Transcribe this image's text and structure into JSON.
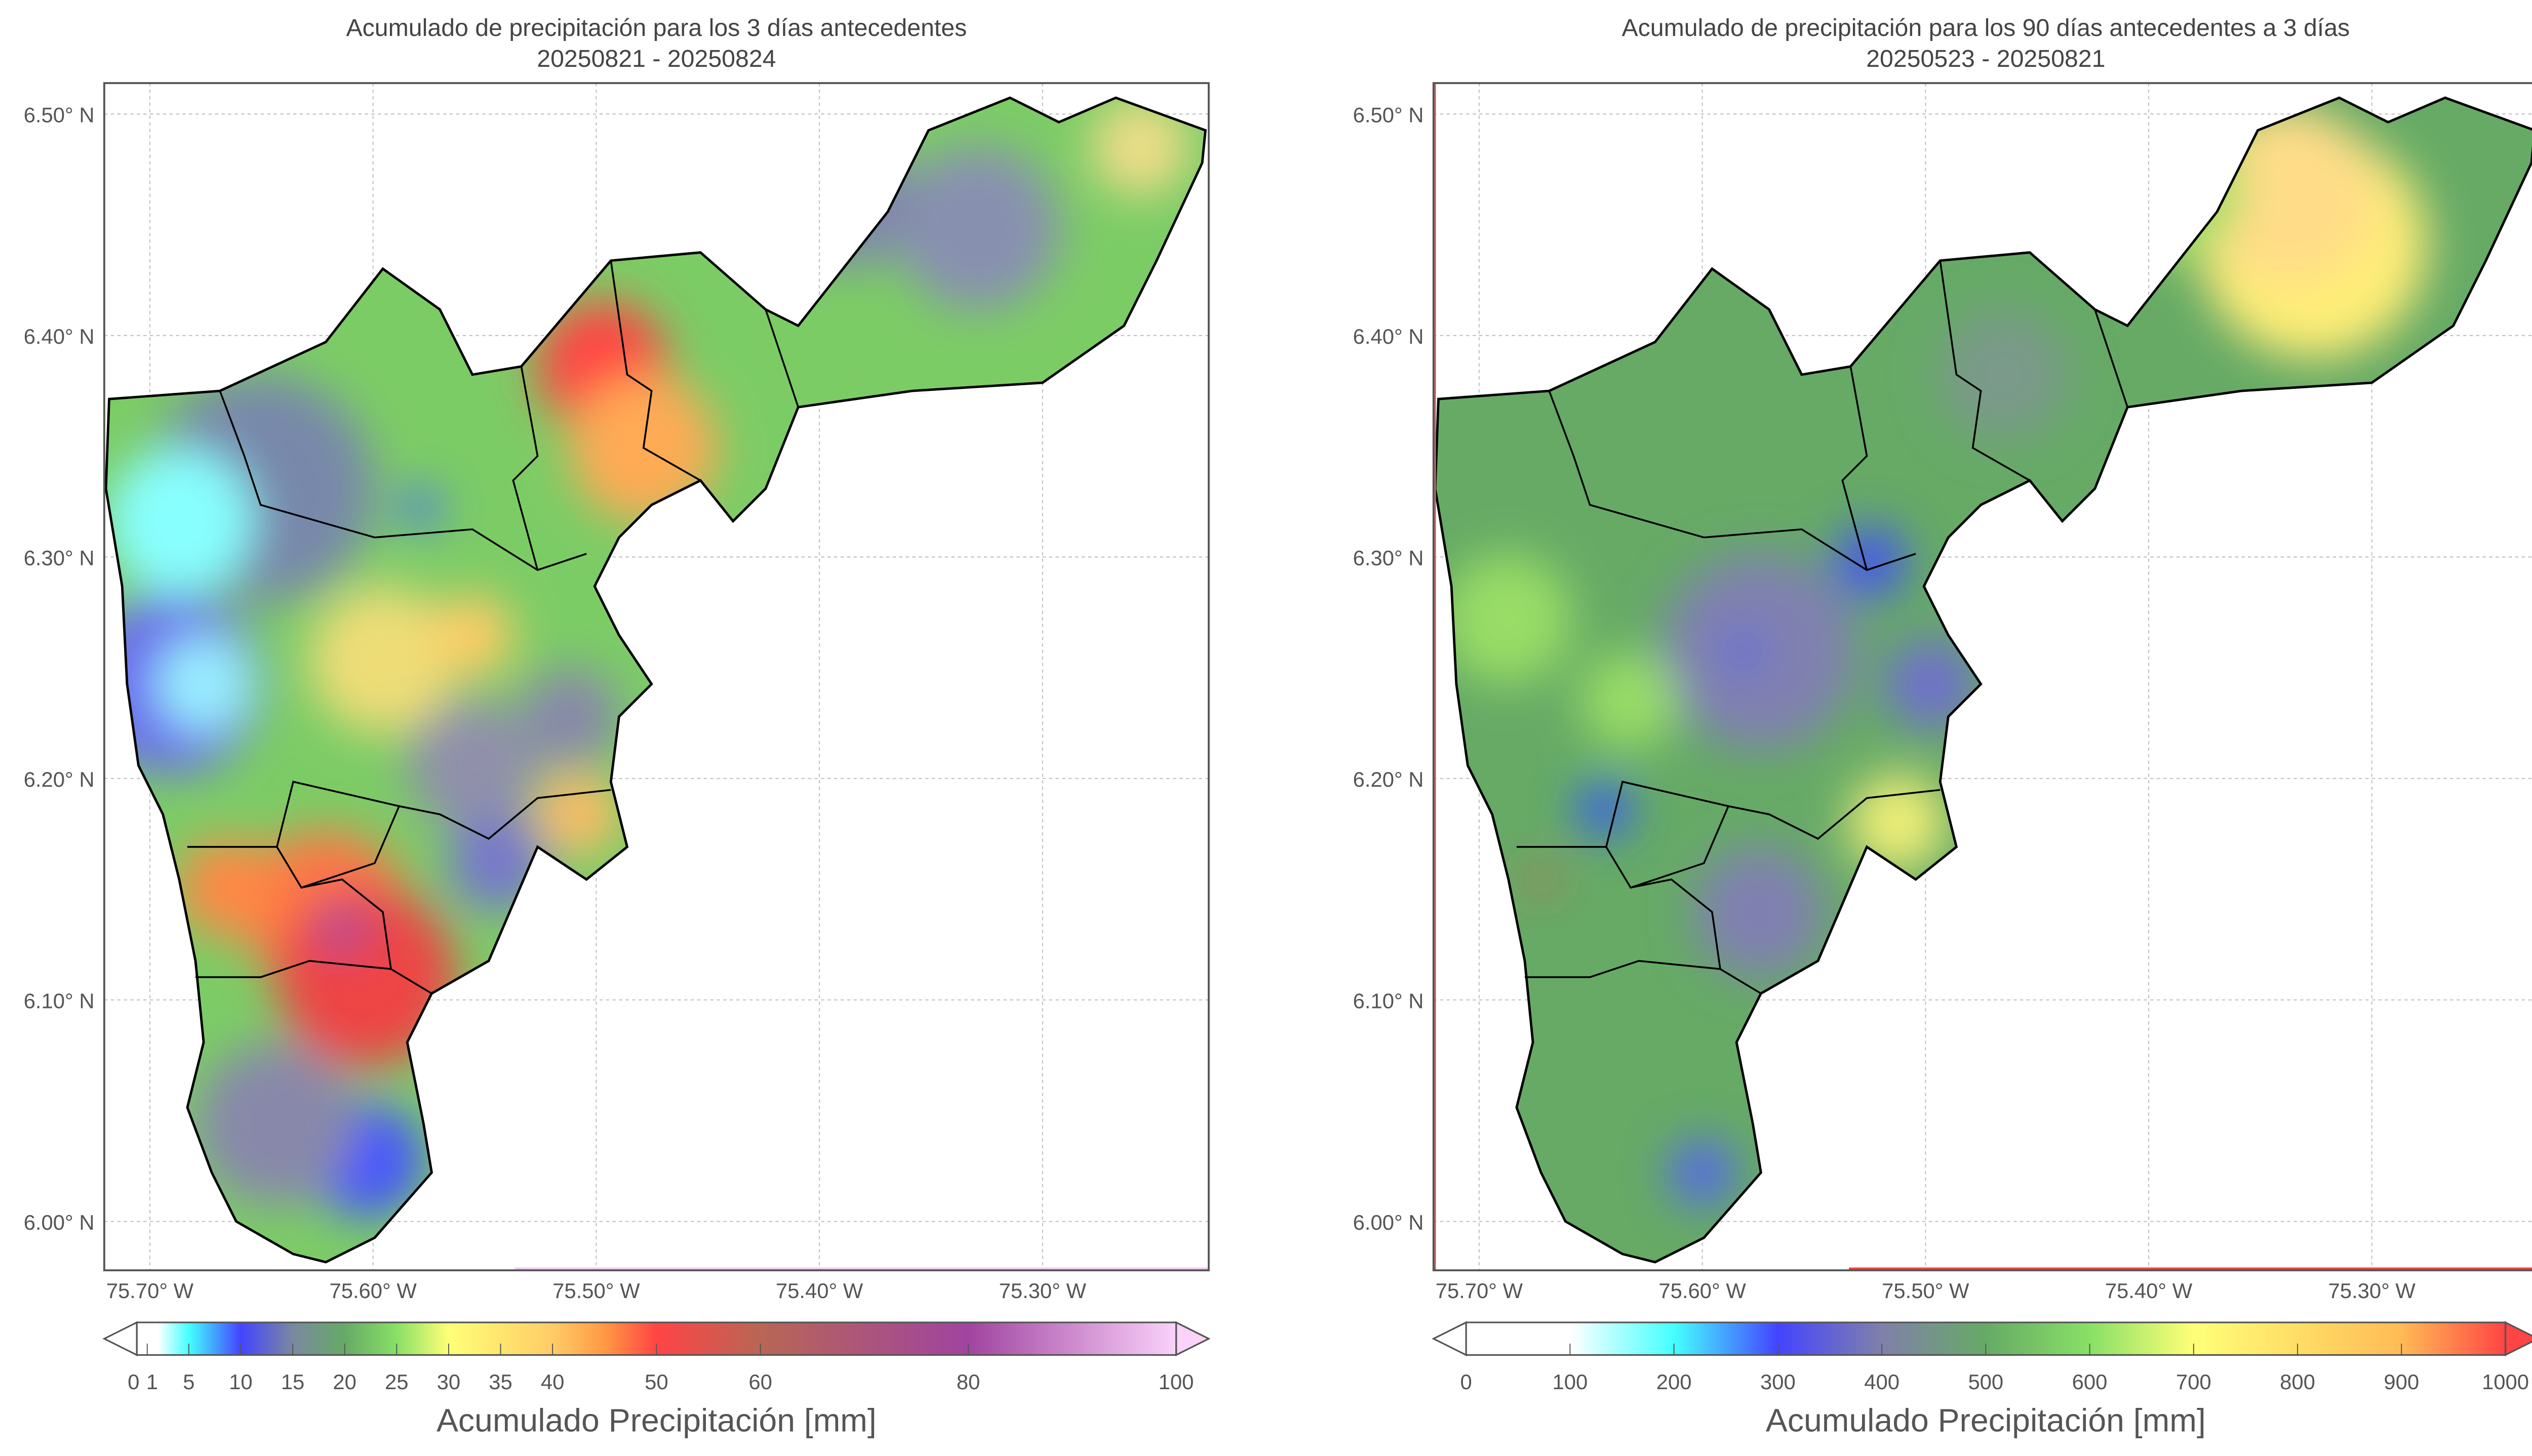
{
  "panels": [
    {
      "title": "Acumulado de precipitación para los 3 días antecedentes",
      "subtitle": "20250821 - 20250824",
      "lat_ticks": [
        "6.50° N",
        "6.40° N",
        "6.30° N",
        "6.20° N",
        "6.10° N",
        "6.00° N"
      ],
      "lon_ticks": [
        "75.70° W",
        "75.60° W",
        "75.50° W",
        "75.40° W",
        "75.30° W"
      ],
      "colorbar": {
        "label": "Acumulado Precipitación [mm]",
        "min": 0,
        "max": 100,
        "ticks": [
          0,
          1,
          5,
          10,
          15,
          20,
          25,
          30,
          35,
          40,
          50,
          60,
          80,
          100
        ],
        "tick_labels": [
          "0",
          "1",
          "5",
          "10",
          "15",
          "20",
          "25",
          "30",
          "35",
          "40",
          "50",
          "60",
          "80",
          "100"
        ],
        "stops": [
          [
            0,
            "#ffffff"
          ],
          [
            2,
            "#ffffff"
          ],
          [
            5,
            "#44ffff"
          ],
          [
            10,
            "#4444ff"
          ],
          [
            15,
            "#7a88a0"
          ],
          [
            20,
            "#66aa66"
          ],
          [
            25,
            "#88e066"
          ],
          [
            30,
            "#ffff77"
          ],
          [
            40,
            "#ffcc66"
          ],
          [
            45,
            "#ff9944"
          ],
          [
            50,
            "#ff4444"
          ],
          [
            60,
            "#b86655"
          ],
          [
            80,
            "#a044a0"
          ],
          [
            100,
            "#fad2fa"
          ]
        ],
        "extend_min_color": "#ffffff",
        "extend_max_color": "#fad2fa"
      }
    },
    {
      "title": "Acumulado de precipitación para los 90 días antecedentes a 3 días",
      "subtitle": "20250523 - 20250821",
      "lat_ticks": [
        "6.50° N",
        "6.40° N",
        "6.30° N",
        "6.20° N",
        "6.10° N",
        "6.00° N"
      ],
      "lon_ticks": [
        "75.70° W",
        "75.60° W",
        "75.50° W",
        "75.40° W",
        "75.30° W"
      ],
      "colorbar": {
        "label": "Acumulado Precipitación [mm]",
        "min": 0,
        "max": 1000,
        "ticks": [
          0,
          100,
          200,
          300,
          400,
          500,
          600,
          700,
          800,
          900,
          1000
        ],
        "tick_labels": [
          "0",
          "100",
          "200",
          "300",
          "400",
          "500",
          "600",
          "700",
          "800",
          "900",
          "1000"
        ],
        "stops": [
          [
            0,
            "#ffffff"
          ],
          [
            100,
            "#ffffff"
          ],
          [
            200,
            "#44ffff"
          ],
          [
            300,
            "#4444ff"
          ],
          [
            400,
            "#8080aa"
          ],
          [
            500,
            "#66aa66"
          ],
          [
            600,
            "#88e066"
          ],
          [
            700,
            "#ffff77"
          ],
          [
            800,
            "#ffdd66"
          ],
          [
            900,
            "#ffbb55"
          ],
          [
            1000,
            "#ff4444"
          ]
        ],
        "extend_min_color": "#ffffff",
        "extend_max_color": "#ff4444"
      }
    }
  ]
}
